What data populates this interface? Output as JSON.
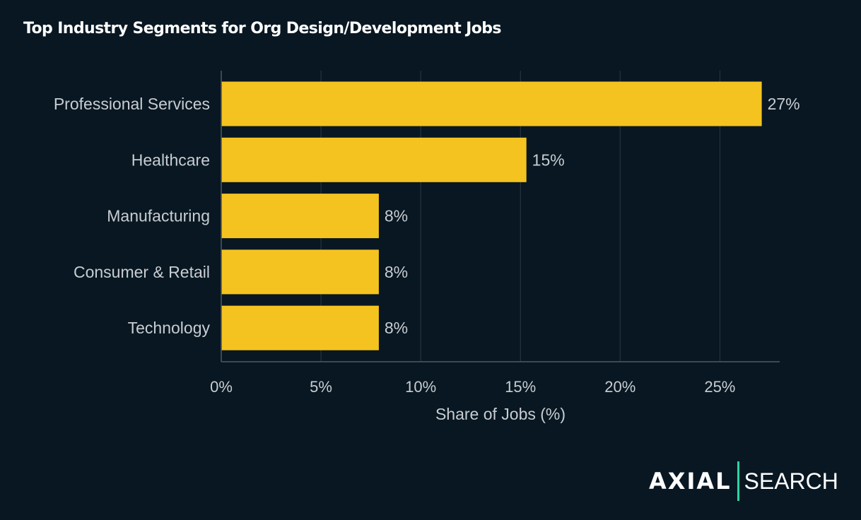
{
  "chart_data": {
    "type": "bar",
    "orientation": "horizontal",
    "title": "Top Industry Segments for Org Design/Development Jobs",
    "xlabel": "Share of Jobs (%)",
    "ylabel": "",
    "categories": [
      "Professional Services",
      "Healthcare",
      "Manufacturing",
      "Consumer & Retail",
      "Technology"
    ],
    "values": [
      27.1,
      15.3,
      7.9,
      7.9,
      7.9
    ],
    "data_labels": [
      "27%",
      "15%",
      "8%",
      "8%",
      "8%"
    ],
    "xlim": [
      0,
      28
    ],
    "xticks": [
      0,
      5,
      10,
      15,
      20,
      25
    ],
    "xtick_labels": [
      "0%",
      "5%",
      "10%",
      "15%",
      "20%",
      "25%"
    ],
    "grid": "vertical",
    "colors": {
      "bar": "#F5C320",
      "background": "#081722",
      "text": "#C8CDD2",
      "grid": "#2A3A44"
    }
  },
  "logo": {
    "left": "AXIAL",
    "right": "SEARCH",
    "accent": "#2ED3A0"
  }
}
